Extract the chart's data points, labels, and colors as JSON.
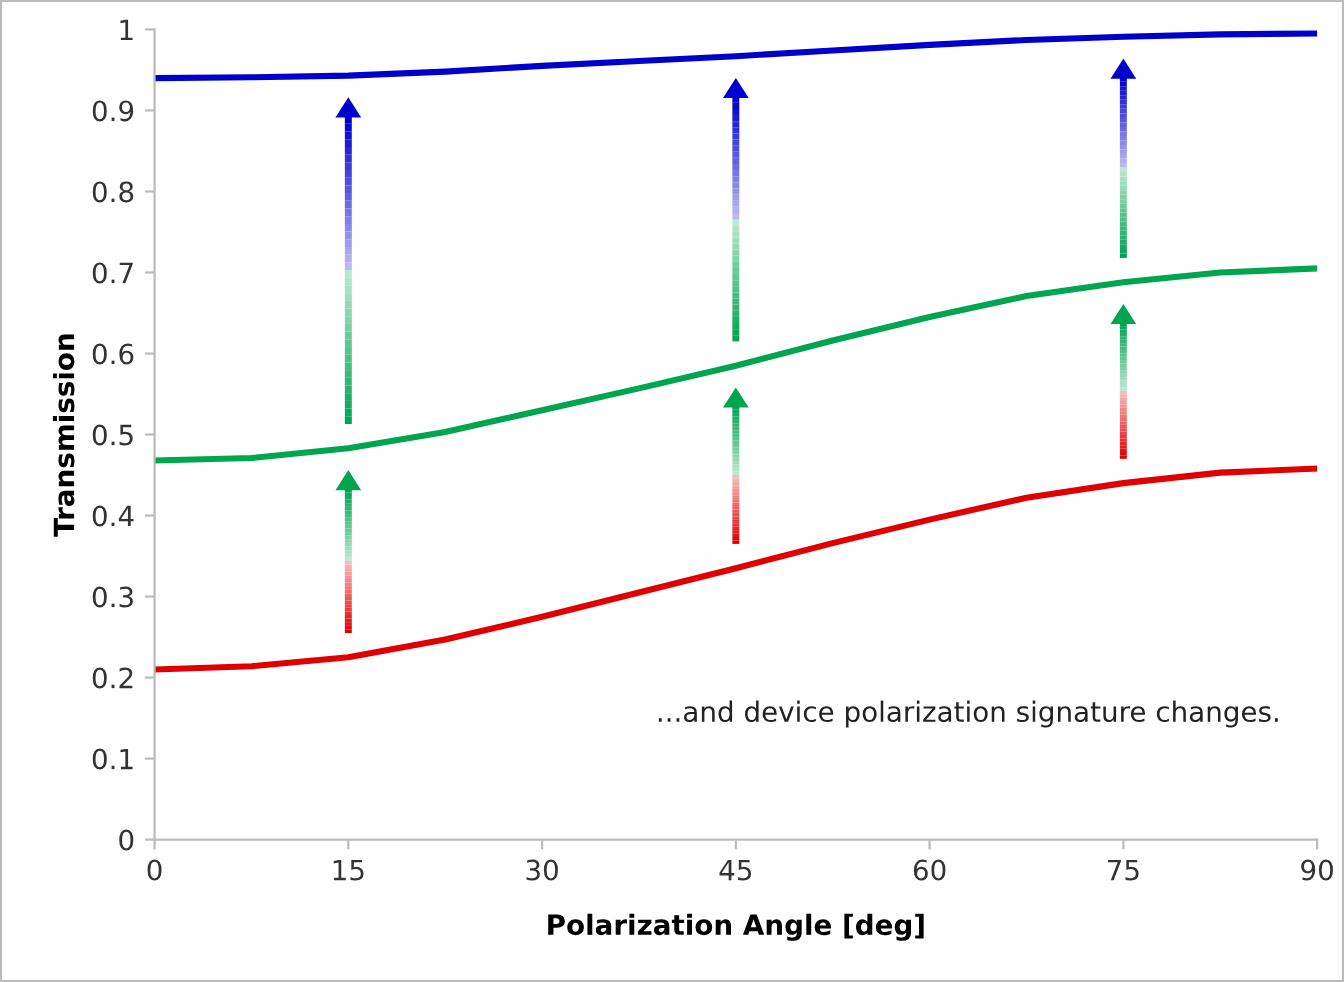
{
  "chart_data": {
    "type": "line",
    "xlabel": "Polarization Angle [deg]",
    "ylabel": "Transmission",
    "x": [
      0,
      7.5,
      15,
      22.5,
      30,
      37.5,
      45,
      52.5,
      60,
      67.5,
      75,
      82.5,
      90
    ],
    "series": [
      {
        "color": "#0000cc",
        "values": [
          0.94,
          0.941,
          0.943,
          0.948,
          0.955,
          0.961,
          0.967,
          0.974,
          0.981,
          0.987,
          0.991,
          0.994,
          0.995
        ]
      },
      {
        "color": "#00a550",
        "values": [
          0.468,
          0.471,
          0.483,
          0.503,
          0.53,
          0.557,
          0.585,
          0.616,
          0.645,
          0.671,
          0.688,
          0.7,
          0.705
        ]
      },
      {
        "color": "#e00000",
        "values": [
          0.21,
          0.214,
          0.225,
          0.247,
          0.275,
          0.305,
          0.335,
          0.366,
          0.395,
          0.422,
          0.44,
          0.453,
          0.458
        ]
      }
    ],
    "xlim": [
      0,
      90
    ],
    "xticks": [
      0,
      15,
      30,
      45,
      60,
      75,
      90
    ],
    "ylim": [
      0,
      1
    ],
    "yticks": [
      0,
      0.1,
      0.2,
      0.3,
      0.4,
      0.5,
      0.6,
      0.7,
      0.8,
      0.9,
      1
    ],
    "annotations": [
      "...and device polarization signature changes."
    ],
    "grid": false,
    "legend": false,
    "marker": "none",
    "line_style": "solid"
  }
}
